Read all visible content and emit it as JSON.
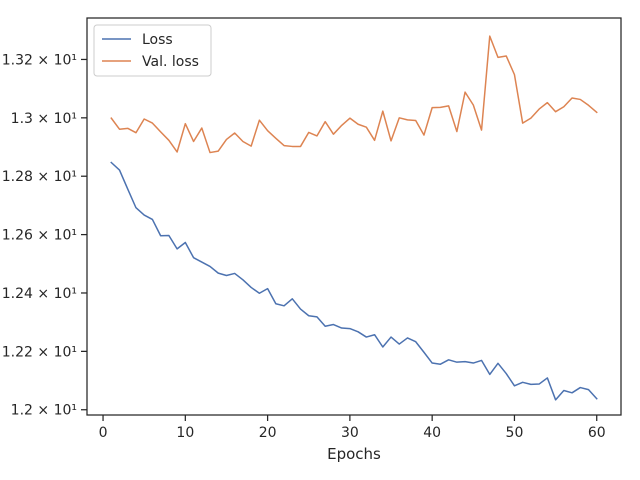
{
  "chart_data": {
    "type": "line",
    "title": "",
    "xlabel": "Epochs",
    "ylabel": "",
    "xlim": [
      -1.95,
      62.95
    ],
    "ylim": [
      11.982,
      13.342
    ],
    "x_ticks": [
      {
        "value": 0,
        "label": "0"
      },
      {
        "value": 10,
        "label": "10"
      },
      {
        "value": 20,
        "label": "20"
      },
      {
        "value": 30,
        "label": "30"
      },
      {
        "value": 40,
        "label": "40"
      },
      {
        "value": 50,
        "label": "50"
      },
      {
        "value": 60,
        "label": "60"
      }
    ],
    "y_ticks": [
      {
        "value": 12.0,
        "label": "1.2 × 10¹"
      },
      {
        "value": 12.2,
        "label": "1.22 × 10¹"
      },
      {
        "value": 12.4,
        "label": "1.24 × 10¹"
      },
      {
        "value": 12.6,
        "label": "1.26 × 10¹"
      },
      {
        "value": 12.8,
        "label": "1.28 × 10¹"
      },
      {
        "value": 13.0,
        "label": "1.3 × 10¹"
      },
      {
        "value": 13.2,
        "label": "1.32 × 10¹"
      }
    ],
    "legend_position": "top-left",
    "grid": false,
    "x": [
      1,
      2,
      3,
      4,
      5,
      6,
      7,
      8,
      9,
      10,
      11,
      12,
      13,
      14,
      15,
      16,
      17,
      18,
      19,
      20,
      21,
      22,
      23,
      24,
      25,
      26,
      27,
      28,
      29,
      30,
      31,
      32,
      33,
      34,
      35,
      36,
      37,
      38,
      39,
      40,
      41,
      42,
      43,
      44,
      45,
      46,
      47,
      48,
      49,
      50,
      51,
      52,
      53,
      54,
      55,
      56,
      57,
      58,
      59,
      60
    ],
    "series": [
      {
        "name": "Loss",
        "color": "#4c72b0",
        "values": [
          12.847,
          12.821,
          12.756,
          12.692,
          12.667,
          12.652,
          12.596,
          12.597,
          12.551,
          12.573,
          12.521,
          12.506,
          12.491,
          12.468,
          12.46,
          12.467,
          12.445,
          12.419,
          12.399,
          12.415,
          12.363,
          12.356,
          12.38,
          12.345,
          12.322,
          12.318,
          12.286,
          12.292,
          12.28,
          12.278,
          12.267,
          12.249,
          12.257,
          12.215,
          12.249,
          12.225,
          12.246,
          12.233,
          12.197,
          12.16,
          12.156,
          12.171,
          12.163,
          12.165,
          12.16,
          12.169,
          12.121,
          12.159,
          12.124,
          12.082,
          12.094,
          12.087,
          12.088,
          12.109,
          12.034,
          12.066,
          12.058,
          12.076,
          12.069,
          12.038
        ]
      },
      {
        "name": "Val. loss",
        "color": "#dd8452",
        "values": [
          12.999,
          12.961,
          12.964,
          12.949,
          12.996,
          12.982,
          12.952,
          12.923,
          12.883,
          12.98,
          12.919,
          12.965,
          12.881,
          12.886,
          12.926,
          12.948,
          12.919,
          12.903,
          12.992,
          12.956,
          12.93,
          12.905,
          12.902,
          12.902,
          12.95,
          12.938,
          12.987,
          12.944,
          12.974,
          12.999,
          12.978,
          12.968,
          12.923,
          13.023,
          12.921,
          13.0,
          12.993,
          12.991,
          12.941,
          13.035,
          13.036,
          13.041,
          12.953,
          13.088,
          13.044,
          12.958,
          13.28,
          13.207,
          13.212,
          13.148,
          12.982,
          12.999,
          13.03,
          13.052,
          13.021,
          13.038,
          13.068,
          13.063,
          13.043,
          13.019
        ]
      }
    ]
  }
}
